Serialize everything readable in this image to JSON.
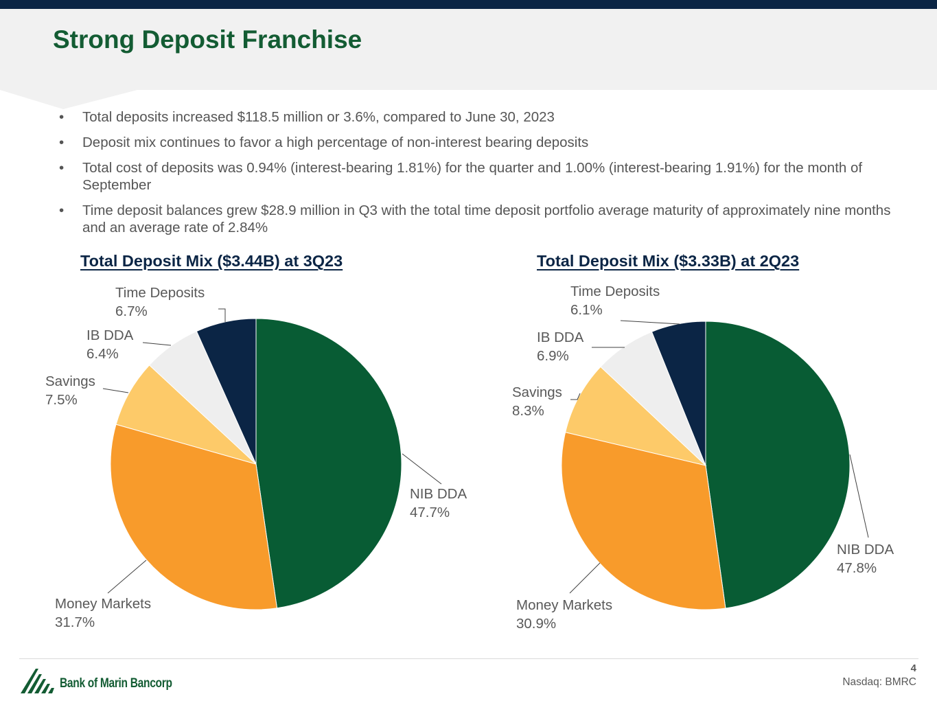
{
  "slide": {
    "title": "Strong Deposit Franchise",
    "bullets": [
      "Total deposits increased $118.5 million or 3.6%, compared to June 30, 2023",
      "Deposit mix continues to favor a high percentage of non-interest bearing deposits",
      "Total cost of deposits was 0.94% (interest-bearing 1.81%) for the quarter and 1.00% (interest-bearing 1.91%) for the month of September",
      "Time deposit balances grew $28.9 million in Q3 with the total time deposit portfolio average maturity of approximately nine months and an average rate of 2.84%"
    ],
    "bullet_glyph": "•"
  },
  "chart_data": [
    {
      "type": "pie",
      "title": "Total Deposit Mix ($3.44B) at 3Q23",
      "slices": [
        {
          "label": "NIB DDA",
          "value": 47.7,
          "value_label": "47.7%",
          "color": "#085c34"
        },
        {
          "label": "Money Markets",
          "value": 31.7,
          "value_label": "31.7%",
          "color": "#f89b2b"
        },
        {
          "label": "Savings",
          "value": 7.5,
          "value_label": "7.5%",
          "color": "#fdca69"
        },
        {
          "label": "IB DDA",
          "value": 6.4,
          "value_label": "6.4%",
          "color": "#eeeeee"
        },
        {
          "label": "Time Deposits",
          "value": 6.7,
          "value_label": "6.7%",
          "color": "#0b2545"
        }
      ]
    },
    {
      "type": "pie",
      "title": "Total Deposit Mix ($3.33B) at 2Q23",
      "slices": [
        {
          "label": "NIB DDA",
          "value": 47.8,
          "value_label": "47.8%",
          "color": "#085c34"
        },
        {
          "label": "Money Markets",
          "value": 30.9,
          "value_label": "30.9%",
          "color": "#f89b2b"
        },
        {
          "label": "Savings",
          "value": 8.3,
          "value_label": "8.3%",
          "color": "#fdca69"
        },
        {
          "label": "IB DDA",
          "value": 6.9,
          "value_label": "6.9%",
          "color": "#eeeeee"
        },
        {
          "label": "Time Deposits",
          "value": 6.1,
          "value_label": "6.1%",
          "color": "#0b2545"
        }
      ]
    }
  ],
  "footer": {
    "company": "Bank of Marin Bancorp",
    "page_number": "4",
    "ticker": "Nasdaq: BMRC"
  },
  "colors": {
    "brand_green": "#135c33",
    "navy": "#0b2545"
  }
}
